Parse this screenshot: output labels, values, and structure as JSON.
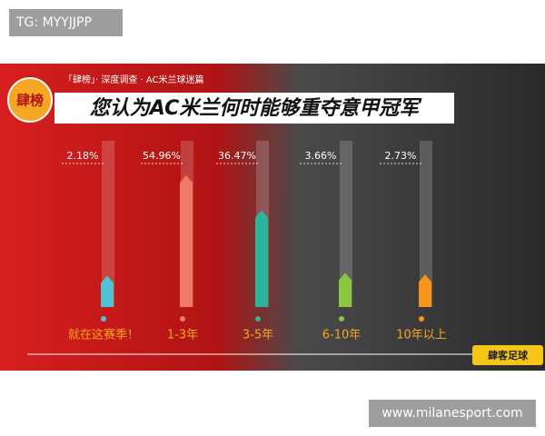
{
  "watermark": "TG: MYYJJPP",
  "site": "www.milanesport.com",
  "chart_data": {
    "type": "bar",
    "badge": "肆榜",
    "subtitle": "「肆榜」· 深度调查 · AC米兰球迷篇",
    "title": "您认为AC米兰何时能够重夺意甲冠军",
    "brand": "肆客足球",
    "categories": [
      "就在这赛季！",
      "1-3年",
      "3-5年",
      "6-10年",
      "10年以上"
    ],
    "values": [
      2.18,
      54.96,
      36.47,
      3.66,
      2.73
    ],
    "value_labels": [
      "2.18%",
      "54.96%",
      "36.47%",
      "3.66%",
      "2.73%"
    ],
    "colors": [
      "#4fc3d4",
      "#f07a6a",
      "#2bb59a",
      "#8cc63f",
      "#f7941d"
    ]
  }
}
